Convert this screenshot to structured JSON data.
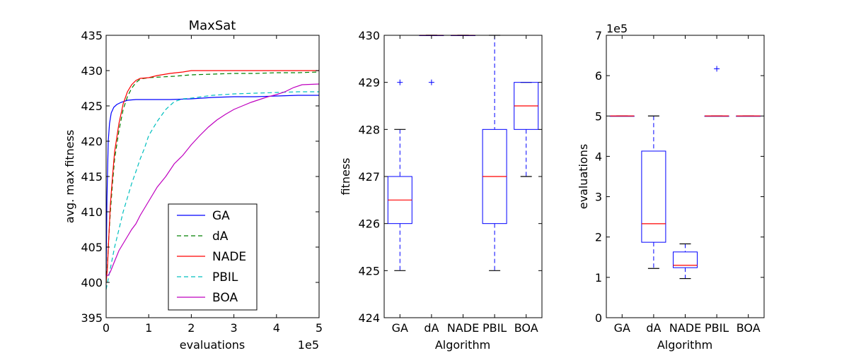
{
  "chart_data": [
    {
      "type": "line",
      "title": "MaxSat",
      "xlabel": "evaluations",
      "ylabel": "avg. max fitness",
      "x_offset_label": "1e5",
      "xlim": [
        0,
        5
      ],
      "ylim": [
        395,
        435
      ],
      "xticks": [
        "0",
        "1",
        "2",
        "3",
        "4",
        "5"
      ],
      "yticks": [
        "395",
        "400",
        "405",
        "410",
        "415",
        "420",
        "425",
        "430",
        "435"
      ],
      "legend": {
        "placement": "lower-center",
        "entries": [
          "GA",
          "dA",
          "NADE",
          "PBIL",
          "BOA"
        ]
      },
      "series": [
        {
          "name": "GA",
          "color": "#0000ff",
          "dash": "solid",
          "x": [
            0,
            0.02,
            0.05,
            0.08,
            0.12,
            0.18,
            0.25,
            0.35,
            0.5,
            0.7,
            1.0,
            1.5,
            2.0,
            2.5,
            3.0,
            3.5,
            4.0,
            4.5,
            5.0
          ],
          "y": [
            401,
            412,
            420,
            422.5,
            424,
            424.8,
            425.2,
            425.5,
            425.8,
            425.9,
            425.9,
            425.9,
            426.0,
            426.2,
            426.3,
            426.3,
            426.4,
            426.5,
            426.5
          ]
        },
        {
          "name": "dA",
          "color": "#008000",
          "dash": "dashed",
          "x": [
            0,
            0.03,
            0.06,
            0.1,
            0.15,
            0.2,
            0.3,
            0.4,
            0.5,
            0.6,
            0.7,
            0.8,
            1.0,
            1.3,
            1.6,
            2.0,
            2.5,
            3.0,
            3.5,
            4.0,
            4.5,
            5.0
          ],
          "y": [
            400,
            402.5,
            406,
            410,
            414,
            417.5,
            421.5,
            424.5,
            426.3,
            427.5,
            428.3,
            428.8,
            429.0,
            429.1,
            429.2,
            429.4,
            429.5,
            429.6,
            429.6,
            429.7,
            429.7,
            429.8
          ]
        },
        {
          "name": "NADE",
          "color": "#ff0000",
          "dash": "solid",
          "x": [
            0,
            0.03,
            0.06,
            0.1,
            0.15,
            0.2,
            0.3,
            0.4,
            0.5,
            0.6,
            0.7,
            0.8,
            1.0,
            1.2,
            1.5,
            1.8,
            2.0,
            3.0,
            4.0,
            5.0
          ],
          "y": [
            400,
            402,
            406,
            411,
            415,
            418.5,
            422.5,
            425.3,
            427,
            428,
            428.6,
            428.9,
            429.0,
            429.3,
            429.6,
            429.8,
            430.0,
            430.0,
            430.0,
            430.0
          ]
        },
        {
          "name": "PBIL",
          "color": "#00bfbf",
          "dash": "dashed",
          "x": [
            0,
            0.05,
            0.1,
            0.15,
            0.2,
            0.3,
            0.4,
            0.5,
            0.6,
            0.7,
            0.8,
            0.9,
            1.0,
            1.2,
            1.4,
            1.6,
            1.8,
            2.0,
            2.5,
            3.0,
            3.5,
            4.0,
            4.5,
            5.0
          ],
          "y": [
            399,
            400.5,
            402,
            403.5,
            405,
            407.5,
            410,
            412,
            414,
            415.7,
            417.5,
            419,
            420.8,
            422.8,
            424.5,
            425.6,
            426.0,
            426.1,
            426.5,
            426.7,
            426.8,
            426.9,
            427.0,
            427.0
          ]
        },
        {
          "name": "BOA",
          "color": "#bf00bf",
          "dash": "solid",
          "x": [
            0,
            0.05,
            0.1,
            0.2,
            0.3,
            0.4,
            0.5,
            0.6,
            0.7,
            0.8,
            0.9,
            1.0,
            1.2,
            1.4,
            1.6,
            1.8,
            2.0,
            2.2,
            2.4,
            2.6,
            2.8,
            3.0,
            3.2,
            3.4,
            3.6,
            3.8,
            4.0,
            4.2,
            4.4,
            4.6,
            5.0
          ],
          "y": [
            401,
            401,
            401.5,
            403,
            404.5,
            405.5,
            406.5,
            407.5,
            408.3,
            409.5,
            410.5,
            411.5,
            413.5,
            415,
            416.8,
            418,
            419.5,
            420.8,
            422,
            423,
            423.8,
            424.5,
            425,
            425.5,
            425.9,
            426.3,
            426.6,
            427.0,
            427.6,
            428.0,
            428.1
          ]
        }
      ]
    },
    {
      "type": "box",
      "xlabel": "Algorithm",
      "ylabel": "fitness",
      "ylim": [
        424,
        430
      ],
      "yticks": [
        "424",
        "425",
        "426",
        "427",
        "428",
        "429",
        "430"
      ],
      "categories": [
        "GA",
        "dA",
        "NADE",
        "PBIL",
        "BOA"
      ],
      "boxes": [
        {
          "name": "GA",
          "whislo": 425,
          "q1": 426,
          "med": 426.5,
          "q3": 427,
          "whishi": 428,
          "fliers": [
            429
          ]
        },
        {
          "name": "dA",
          "whislo": 430,
          "q1": 430,
          "med": 430,
          "q3": 430,
          "whishi": 430,
          "fliers": [
            429
          ]
        },
        {
          "name": "NADE",
          "whislo": 430,
          "q1": 430,
          "med": 430,
          "q3": 430,
          "whishi": 430,
          "fliers": []
        },
        {
          "name": "PBIL",
          "whislo": 425,
          "q1": 426,
          "med": 427,
          "q3": 428,
          "whishi": 430,
          "fliers": []
        },
        {
          "name": "BOA",
          "whislo": 427,
          "q1": 428,
          "med": 428.5,
          "q3": 429,
          "whishi": 429,
          "fliers": []
        }
      ]
    },
    {
      "type": "box",
      "xlabel": "Algorithm",
      "ylabel": "evaluations",
      "y_offset_label": "1e5",
      "ylim": [
        0,
        7
      ],
      "yticks": [
        "0",
        "1",
        "2",
        "3",
        "4",
        "5",
        "6",
        "7"
      ],
      "categories": [
        "GA",
        "dA",
        "NADE",
        "PBIL",
        "BOA"
      ],
      "boxes": [
        {
          "name": "GA",
          "whislo": 5.0,
          "q1": 5.0,
          "med": 5.0,
          "q3": 5.0,
          "whishi": 5.0,
          "fliers": []
        },
        {
          "name": "dA",
          "whislo": 1.22,
          "q1": 1.87,
          "med": 2.33,
          "q3": 4.13,
          "whishi": 5.0,
          "fliers": []
        },
        {
          "name": "NADE",
          "whislo": 0.97,
          "q1": 1.24,
          "med": 1.3,
          "q3": 1.63,
          "whishi": 1.83,
          "fliers": []
        },
        {
          "name": "PBIL",
          "whislo": 5.0,
          "q1": 5.0,
          "med": 5.0,
          "q3": 5.0,
          "whishi": 5.0,
          "fliers": [
            6.17
          ]
        },
        {
          "name": "BOA",
          "whislo": 5.0,
          "q1": 5.0,
          "med": 5.0,
          "q3": 5.0,
          "whishi": 5.0,
          "fliers": []
        }
      ]
    }
  ]
}
